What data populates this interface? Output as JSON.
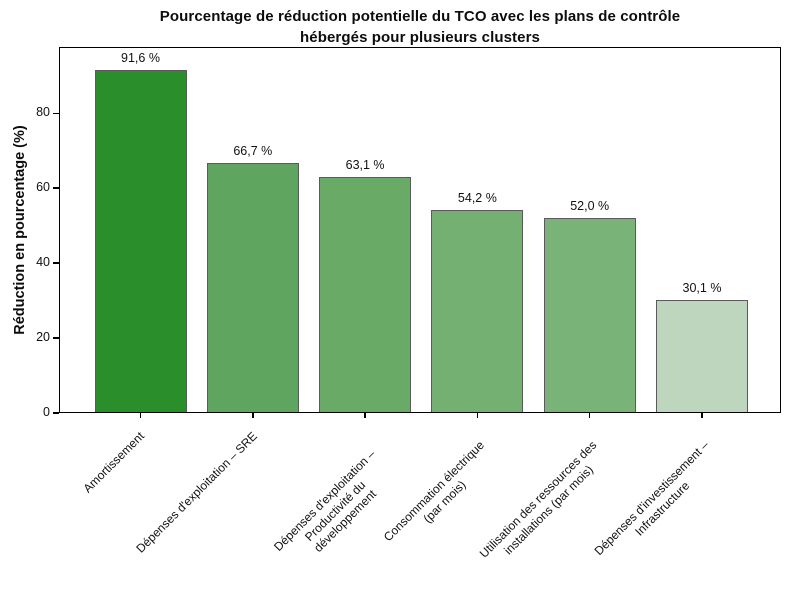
{
  "accent_colors": {
    "axis_color": "#000000",
    "text_color": "#111111",
    "background": "#ffffff"
  },
  "chart_data": {
    "type": "bar",
    "title": "Pourcentage de réduction potentielle du TCO avec les plans de contrôle hébergés pour plusieurs clusters",
    "title_lines": [
      "Pourcentage de réduction potentielle du TCO avec les plans de contrôle",
      "hébergés pour plusieurs clusters"
    ],
    "xlabel": "",
    "ylabel": "Réduction en pourcentage (%)",
    "categories": [
      "Amortissement",
      "Dépenses d'exploitation – SRE",
      "Dépenses d'exploitation –\nProductivité du\ndéveloppement",
      "Consommation électrique\n(par mois)",
      "Utilisation des ressources des\ninstallations (par mois)",
      "Dépenses d'investissement –\nInfrastructure"
    ],
    "values": [
      91.6,
      66.7,
      63.1,
      54.2,
      52.0,
      30.1
    ],
    "value_labels": [
      "91,6 %",
      "66,7 %",
      "63,1 %",
      "54,2 %",
      "52,0 %",
      "30,1 %"
    ],
    "bar_colors": [
      "#2a8f2b",
      "#5fa55f",
      "#68aa66",
      "#73b071",
      "#79b377",
      "#bed6bd"
    ],
    "bar_edge_color": "#5a5a5a",
    "yticks": [
      0,
      20,
      40,
      60,
      80
    ],
    "ylim": [
      0,
      97.7
    ],
    "grid": false,
    "legend": null
  }
}
